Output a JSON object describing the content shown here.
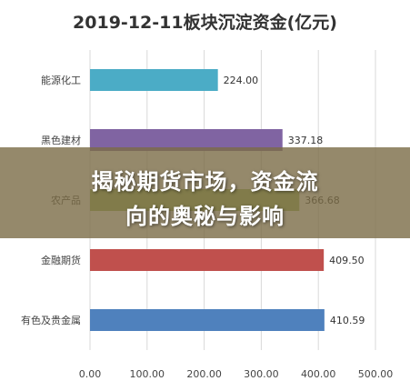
{
  "chart_data": {
    "type": "bar",
    "orientation": "horizontal",
    "title": "2019-12-11板块沉淀资金(亿元)",
    "categories": [
      "能源化工",
      "黑色建材",
      "农产品",
      "金融期货",
      "有色及贵金属"
    ],
    "values": [
      224.0,
      337.18,
      366.68,
      409.5,
      410.59
    ],
    "value_labels": [
      "224.00",
      "337.18",
      "366.68",
      "409.50",
      "410.59"
    ],
    "colors": [
      "#4bacc6",
      "#8064a2",
      "#9bbb59",
      "#c0504d",
      "#4f81bd"
    ],
    "xlim": [
      0,
      500
    ],
    "xticks": [
      "0.00",
      "100.00",
      "200.00",
      "300.00",
      "400.00",
      "500.00"
    ],
    "grid": true,
    "legend": "none"
  },
  "banner": {
    "line1": "揭秘期货市场，资金流",
    "line2": "向的奥秘与影响"
  }
}
